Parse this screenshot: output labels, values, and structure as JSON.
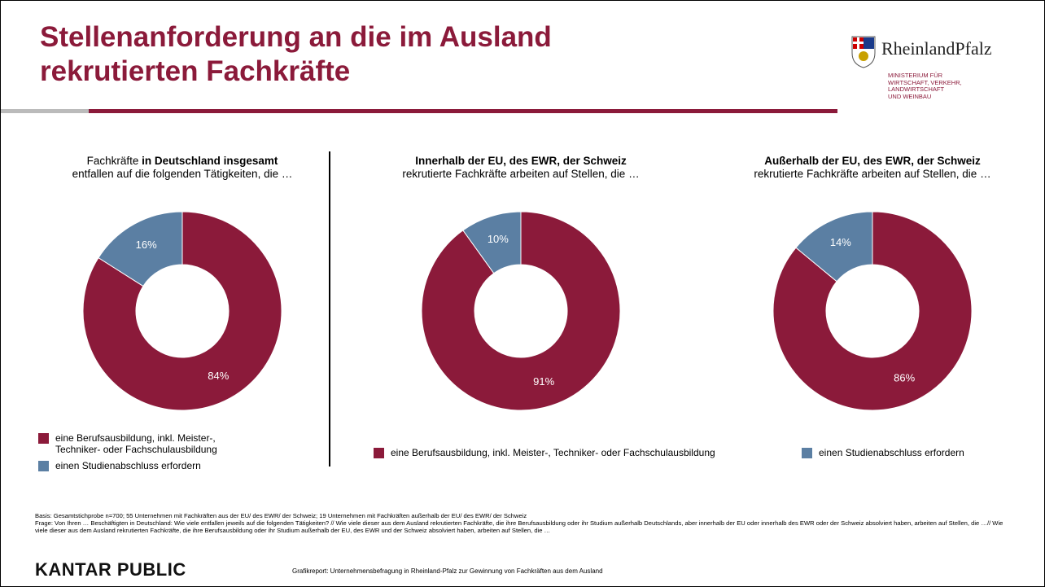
{
  "header": {
    "title": "Stellenanforderung an die im Ausland rekrutierten Fachkräfte",
    "logo_name": "RheinlandPfalz",
    "ministry_lines": [
      "MINISTERIUM FÜR",
      "WIRTSCHAFT, VERKEHR,",
      "LANDWIRTSCHAFT",
      "UND WEINBAU"
    ]
  },
  "legend": {
    "names": [
      "eine Berufsausbildung, inkl. Meister-, Techniker- oder Fachschulausbildung",
      "einen Studienabschluss erfordern"
    ],
    "colors": [
      "#8b1a3a",
      "#5b7fa3"
    ]
  },
  "chart_data": [
    {
      "type": "donut",
      "title_parts": [
        "Fachkräfte",
        "in Deutschland insgesamt"
      ],
      "subtitle": "entfallen auf die folgenden Tätigkeiten, die …",
      "values": [
        84,
        16
      ],
      "value_labels": [
        "84%",
        "16%"
      ]
    },
    {
      "type": "donut",
      "title": "Innerhalb der EU, des EWR, der Schweiz",
      "subtitle": "rekrutierte Fachkräfte arbeiten auf Stellen, die …",
      "values": [
        91,
        10
      ],
      "value_labels": [
        "91%",
        "10%"
      ]
    },
    {
      "type": "donut",
      "title": "Außerhalb der EU, des EWR, der Schweiz",
      "subtitle": "rekrutierte Fachkräfte arbeiten auf Stellen, die …",
      "values": [
        86,
        14
      ],
      "value_labels": [
        "86%",
        "14%"
      ]
    }
  ],
  "footer": {
    "basis": "Basis: Gesamtstichprobe n=700; 55 Unternehmen mit Fachkräften aus der EU/ des EWR/ der Schweiz; 19 Unternehmen mit Fachkräften außerhalb der EU/ des EWR/ der Schweiz",
    "frage": "Frage: Von Ihren … Beschäftigten in Deutschland: Wie viele entfallen jeweils auf die folgenden Tätigkeiten? // Wie viele dieser aus dem Ausland rekrutierten Fachkräfte, die ihre Berufsausbildung oder ihr Studium außerhalb Deutschlands, aber innerhalb der EU oder innerhalb des EWR oder der Schweiz absolviert haben, arbeiten auf Stellen, die …// Wie viele dieser aus dem Ausland rekrutierten Fachkräfte, die ihre Berufsausbildung oder ihr Studium außerhalb der EU, des EWR und der Schweiz absolviert haben, arbeiten auf Stellen, die …",
    "brand": "KANTAR PUBLIC",
    "report": "Grafikreport: Unternehmensbefragung in Rheinland-Pfalz zur Gewinnung von Fachkräften aus dem Ausland"
  }
}
